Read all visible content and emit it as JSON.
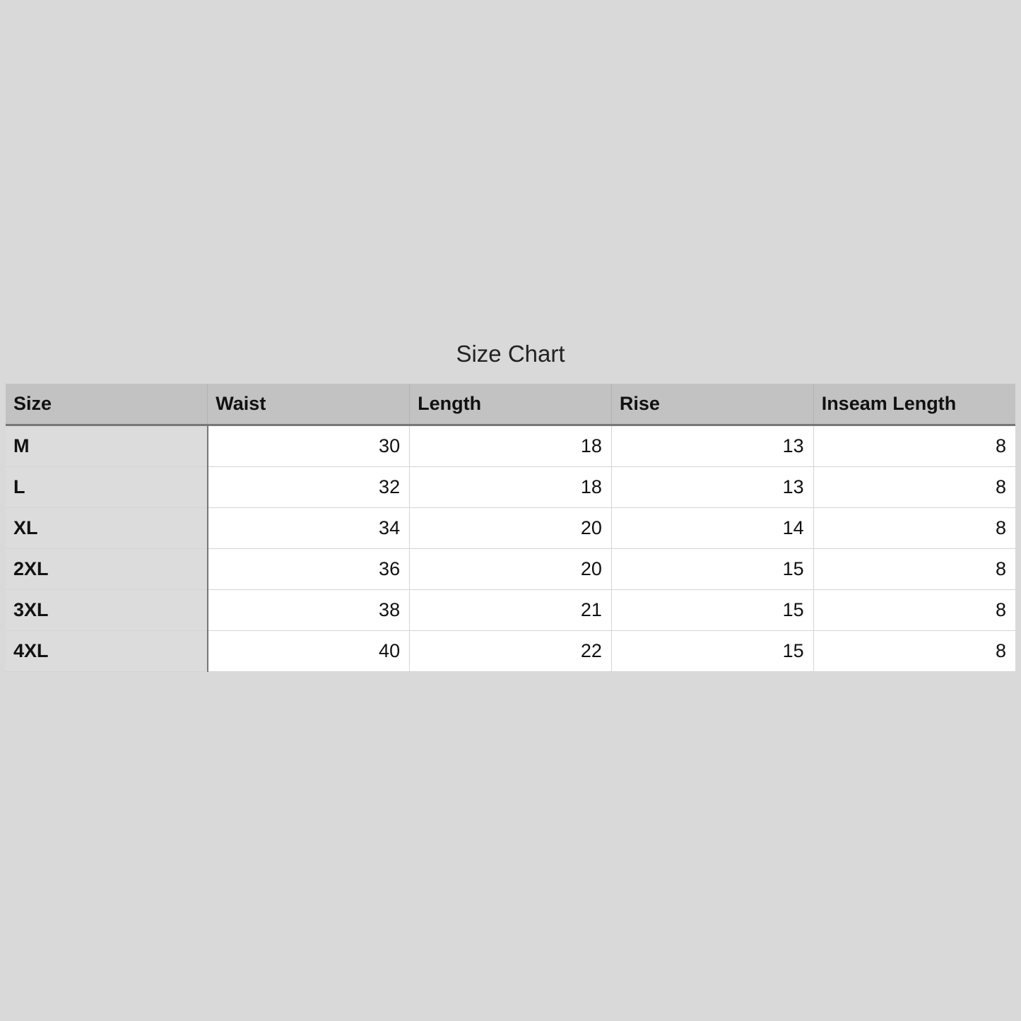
{
  "title": "Size Chart",
  "columns": [
    "Size",
    "Waist",
    "Length",
    "Rise",
    "Inseam Length"
  ],
  "rows": [
    [
      "M",
      "30",
      "18",
      "13",
      "8"
    ],
    [
      "L",
      "32",
      "18",
      "13",
      "8"
    ],
    [
      "XL",
      "34",
      "20",
      "14",
      "8"
    ],
    [
      "2XL",
      "36",
      "20",
      "15",
      "8"
    ],
    [
      "3XL",
      "38",
      "21",
      "15",
      "8"
    ],
    [
      "4XL",
      "40",
      "22",
      "15",
      "8"
    ]
  ]
}
